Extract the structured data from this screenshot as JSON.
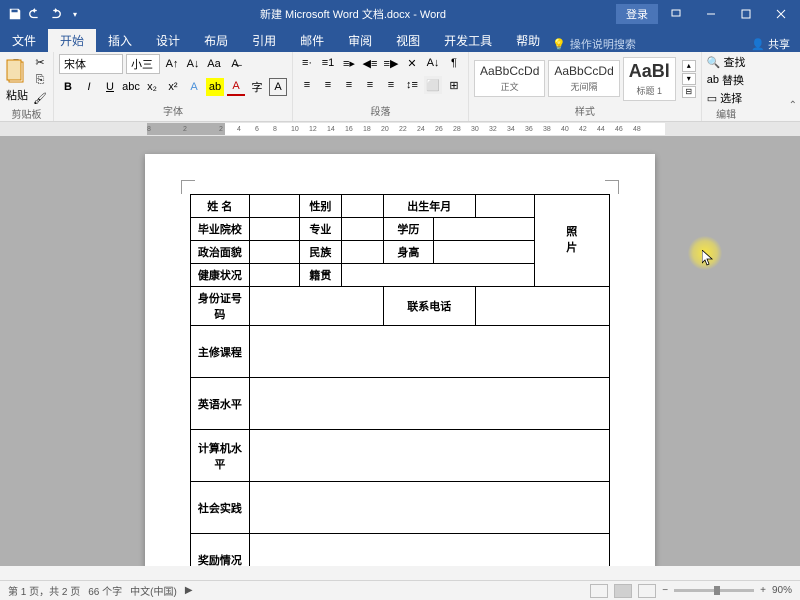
{
  "title": "新建 Microsoft Word 文档.docx - Word",
  "login": "登录",
  "tabs": {
    "file": "文件",
    "home": "开始",
    "insert": "插入",
    "design": "设计",
    "layout": "布局",
    "references": "引用",
    "mailings": "邮件",
    "review": "审阅",
    "view": "视图",
    "developer": "开发工具",
    "help": "帮助",
    "tell_me": "操作说明搜索",
    "share": "共享"
  },
  "ribbon": {
    "paste": "粘贴",
    "clipboard": "剪贴板",
    "font_name": "宋体",
    "font_size": "小三",
    "font_group": "字体",
    "paragraph": "段落",
    "style1": {
      "preview": "AaBbCcDd",
      "name": "正文"
    },
    "style2": {
      "preview": "AaBbCcDd",
      "name": "无间隔"
    },
    "style3": {
      "preview": "AaBl",
      "name": "标题 1"
    },
    "styles": "样式",
    "find": "查找",
    "replace": "替换",
    "select": "选择",
    "editing": "编辑"
  },
  "ruler": [
    "8",
    "",
    "2",
    "",
    "2",
    "4",
    "6",
    "8",
    "10",
    "12",
    "14",
    "16",
    "18",
    "20",
    "22",
    "24",
    "26",
    "28",
    "30",
    "32",
    "34",
    "36",
    "38",
    "40",
    "42",
    "44",
    "46",
    "48"
  ],
  "form": {
    "name": "姓 名",
    "gender": "性别",
    "birth": "出生年月",
    "school": "毕业院校",
    "major": "专业",
    "education": "学历",
    "politics": "政治面貌",
    "ethnic": "民族",
    "height": "身高",
    "health": "健康状况",
    "native": "籍贯",
    "id_no": "身份证号码",
    "phone": "联系电话",
    "photo_ln1": "照",
    "photo_ln2": "片",
    "courses": "主修课程",
    "english": "英语水平",
    "computer": "计算机水平",
    "practice": "社会实践",
    "awards": "奖励情况"
  },
  "status": {
    "page": "第 1 页，共 2 页",
    "words": "66 个字",
    "lang": "中文(中国)",
    "zoom": "90%"
  },
  "colors": {
    "primary": "#2b579a",
    "bg": "#f3f3f3",
    "doc_bg": "#b0b0b0"
  }
}
